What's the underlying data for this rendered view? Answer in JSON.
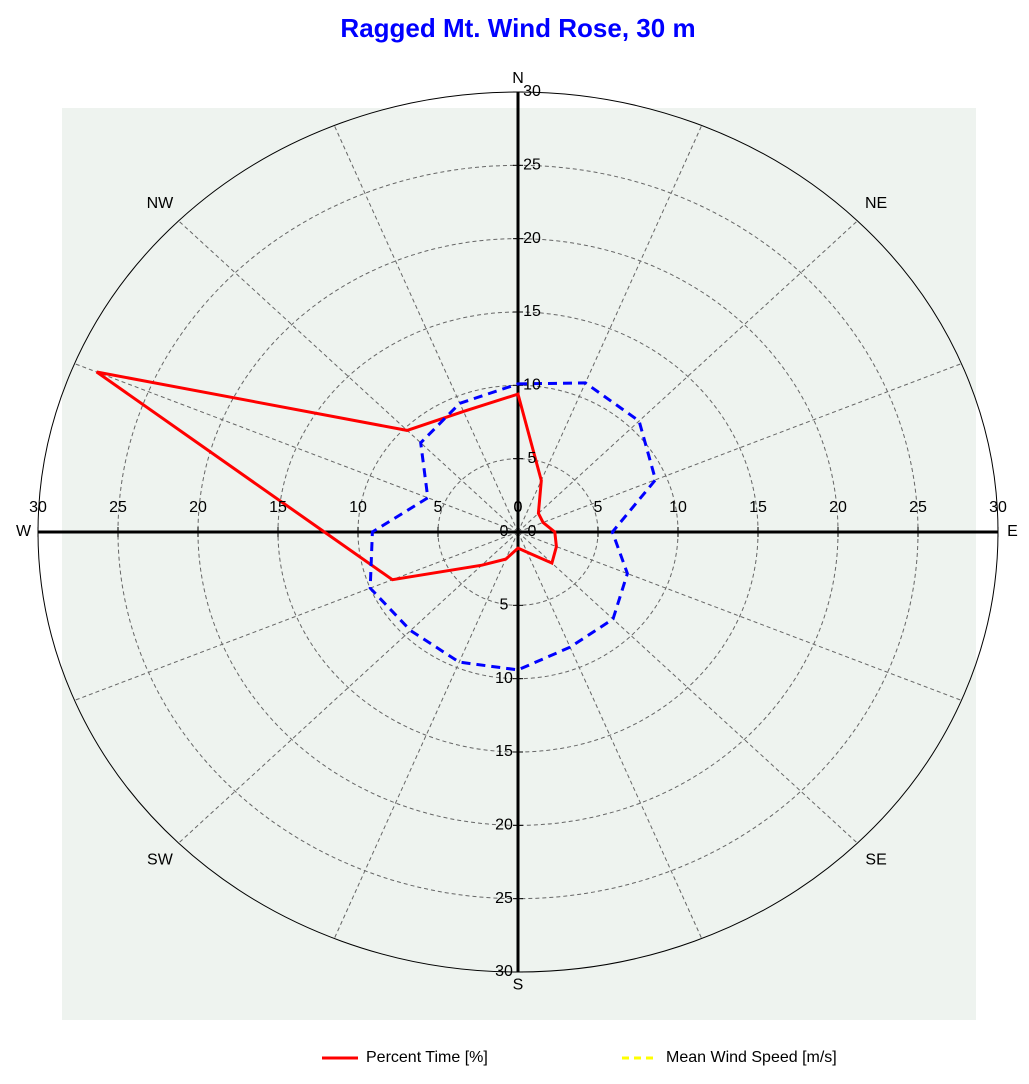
{
  "chart_data": {
    "type": "polar",
    "title": "Ragged Mt. Wind Rose, 30 m",
    "categories": [
      "N",
      null,
      "NE",
      null,
      "E",
      null,
      "SE",
      null,
      "S",
      null,
      "SW",
      null,
      "W",
      null,
      "NW",
      null
    ],
    "rlim": [
      0,
      30
    ],
    "rticks": [
      0,
      5,
      10,
      15,
      20,
      25,
      30
    ],
    "grid": true,
    "legend": "bottom",
    "series": [
      {
        "name": "Percent Time [%]",
        "color": "#ff0000",
        "dash": false,
        "values": [
          9.4,
          3.8,
          1.8,
          1.7,
          2.3,
          2.6,
          3.0,
          1.5,
          1.1,
          2.0,
          3.2,
          8.5,
          12.1,
          28.5,
          9.8,
          8.9
        ]
      },
      {
        "name": "Mean Wind Speed [m/s]",
        "color": "#0000ff",
        "legend_color": "#ffff00",
        "dash": true,
        "values": [
          10.1,
          11.0,
          10.7,
          9.3,
          5.9,
          7.4,
          8.4,
          8.5,
          9.4,
          9.6,
          9.5,
          10.0,
          9.1,
          6.1,
          8.6,
          9.5
        ]
      }
    ]
  }
}
